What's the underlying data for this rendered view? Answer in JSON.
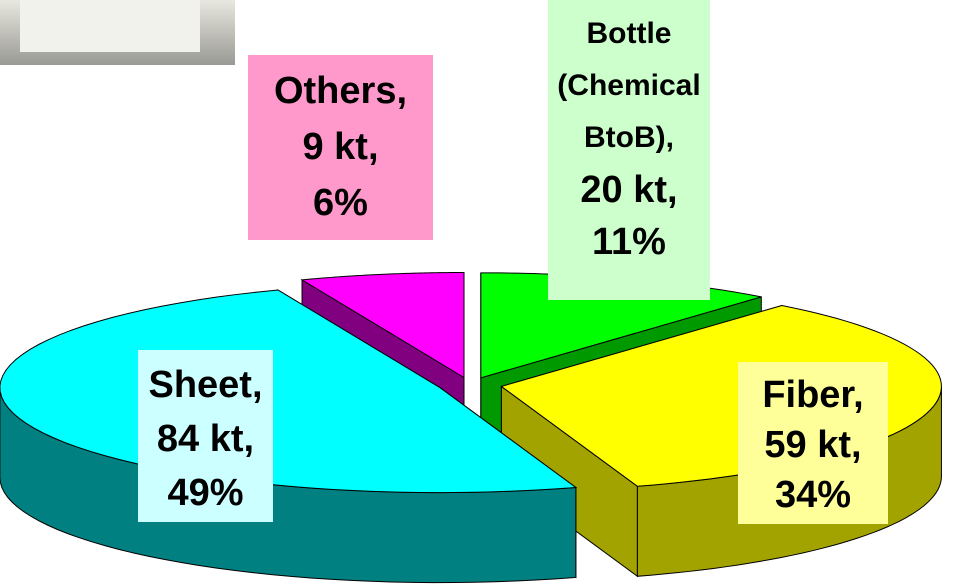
{
  "chart_data": {
    "type": "pie3d",
    "categories": [
      "Bottle (Chemical BtoB),",
      "Fiber,",
      "Sheet,",
      "Others,"
    ],
    "amounts": [
      20,
      59,
      84,
      9
    ],
    "amount_labels": [
      "20 kt,",
      "59 kt,",
      "84 kt,",
      "9 kt,"
    ],
    "values": [
      11,
      34,
      49,
      6
    ],
    "value_labels": [
      "11%",
      "34%",
      "49%",
      "6%"
    ],
    "colors": [
      "#00ff00",
      "#ffff00",
      "#00ffff",
      "#ff00ff"
    ],
    "side_colors": [
      "#009900",
      "#a3a300",
      "#008080",
      "#800080"
    ],
    "label_colors": [
      "#ccffcc",
      "#ffff99",
      "#ccffff",
      "#ff99cc"
    ]
  }
}
